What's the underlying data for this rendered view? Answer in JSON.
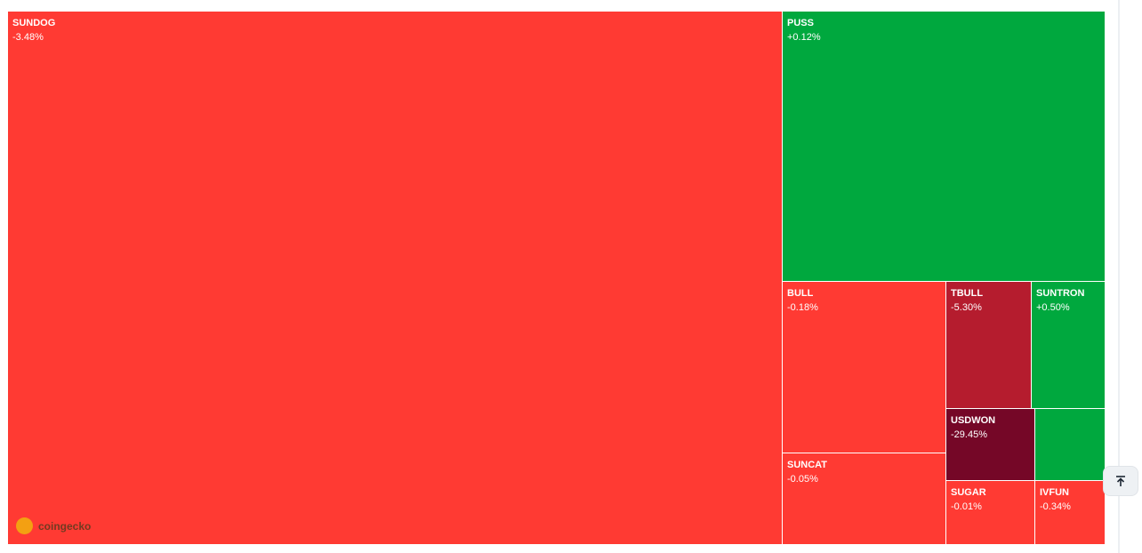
{
  "treemap": {
    "tiles": [
      {
        "name": "SUNDOG",
        "change": "-3.48%",
        "color": "#ff3a33"
      },
      {
        "name": "PUSS",
        "change": "+0.12%",
        "color": "#00a83e"
      },
      {
        "name": "BULL",
        "change": "-0.18%",
        "color": "#ff3a33"
      },
      {
        "name": "TBULL",
        "change": "-5.30%",
        "color": "#b51c2e"
      },
      {
        "name": "SUNTRON",
        "change": "+0.50%",
        "color": "#00a83e"
      },
      {
        "name": "USDWON",
        "change": "-29.45%",
        "color": "#750727"
      },
      {
        "color": "#00a83e"
      },
      {
        "name": "SUNCAT",
        "change": "-0.05%",
        "color": "#ff3a33"
      },
      {
        "name": "SUGAR",
        "change": "-0.01%",
        "color": "#ff3a33"
      },
      {
        "name": "IVFUN",
        "change": "-0.34%",
        "color": "#ff3a33"
      }
    ]
  },
  "watermark": "coingecko"
}
